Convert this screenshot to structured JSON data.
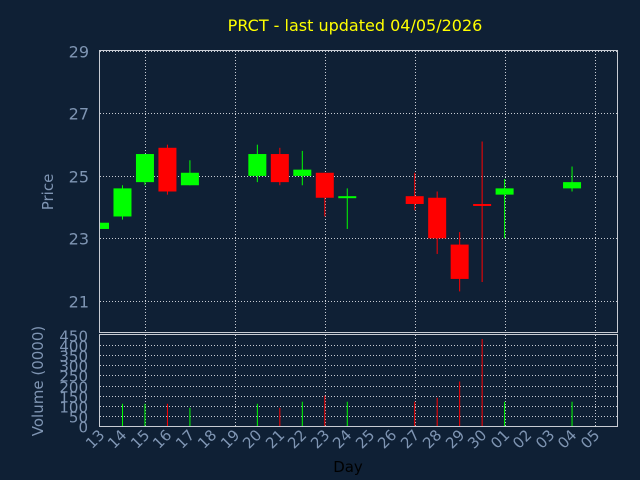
{
  "chart_data": {
    "type": "candlestick",
    "title": "PRCT - last updated 04/05/2026",
    "xlabel": "Day",
    "price_ylabel": "Price",
    "volume_ylabel": "Volume (0000)",
    "x_ticks": [
      "13",
      "14",
      "15",
      "16",
      "17",
      "18",
      "19",
      "20",
      "21",
      "22",
      "23",
      "24",
      "25",
      "26",
      "27",
      "28",
      "29",
      "30",
      "01",
      "02",
      "03",
      "04",
      "05"
    ],
    "price_ticks": [
      21,
      23,
      25,
      27,
      29
    ],
    "price_ylim": [
      20,
      29
    ],
    "volume_ticks": [
      0,
      50,
      100,
      150,
      200,
      250,
      300,
      350,
      400,
      450
    ],
    "volume_ylim": [
      0,
      450
    ],
    "colors": {
      "up": "#00ff00",
      "down": "#ff0000",
      "title": "#ffff00",
      "axis_text": "#7f95b3",
      "grid": "#c8ccd4",
      "background": "#0f2035"
    },
    "candles": [
      {
        "day": "13",
        "open": 23.3,
        "close": 23.5,
        "high": 23.5,
        "low": 23.3,
        "volume": 0
      },
      {
        "day": "14",
        "open": 23.7,
        "close": 24.6,
        "high": 24.7,
        "low": 23.6,
        "volume": 110
      },
      {
        "day": "15",
        "open": 24.8,
        "close": 25.7,
        "high": 25.7,
        "low": 24.7,
        "volume": 110
      },
      {
        "day": "16",
        "open": 25.9,
        "close": 24.5,
        "high": 26.0,
        "low": 24.4,
        "volume": 110
      },
      {
        "day": "17",
        "open": 24.7,
        "close": 25.1,
        "high": 25.5,
        "low": 24.7,
        "volume": 90
      },
      {
        "day": "20",
        "open": 25.0,
        "close": 25.7,
        "high": 26.0,
        "low": 24.8,
        "volume": 110
      },
      {
        "day": "21",
        "open": 25.7,
        "close": 24.8,
        "high": 25.9,
        "low": 24.7,
        "volume": 90
      },
      {
        "day": "22",
        "open": 25.0,
        "close": 25.2,
        "high": 25.8,
        "low": 24.7,
        "volume": 120
      },
      {
        "day": "23",
        "open": 25.1,
        "close": 24.3,
        "high": 25.1,
        "low": 23.7,
        "volume": 150
      },
      {
        "day": "24",
        "open": 24.3,
        "close": 24.35,
        "high": 24.6,
        "low": 23.3,
        "volume": 120
      },
      {
        "day": "27",
        "open": 24.35,
        "close": 24.1,
        "high": 25.1,
        "low": 23.9,
        "volume": 120
      },
      {
        "day": "28",
        "open": 24.3,
        "close": 23.0,
        "high": 24.5,
        "low": 22.5,
        "volume": 140
      },
      {
        "day": "29",
        "open": 22.8,
        "close": 21.7,
        "high": 23.2,
        "low": 21.3,
        "volume": 220
      },
      {
        "day": "30",
        "open": 24.1,
        "close": 24.05,
        "high": 26.1,
        "low": 21.6,
        "volume": 430
      },
      {
        "day": "01",
        "open": 24.4,
        "close": 24.6,
        "high": 24.9,
        "low": 23.0,
        "volume": 120
      },
      {
        "day": "04",
        "open": 24.6,
        "close": 24.8,
        "high": 25.3,
        "low": 24.5,
        "volume": 120
      }
    ]
  }
}
